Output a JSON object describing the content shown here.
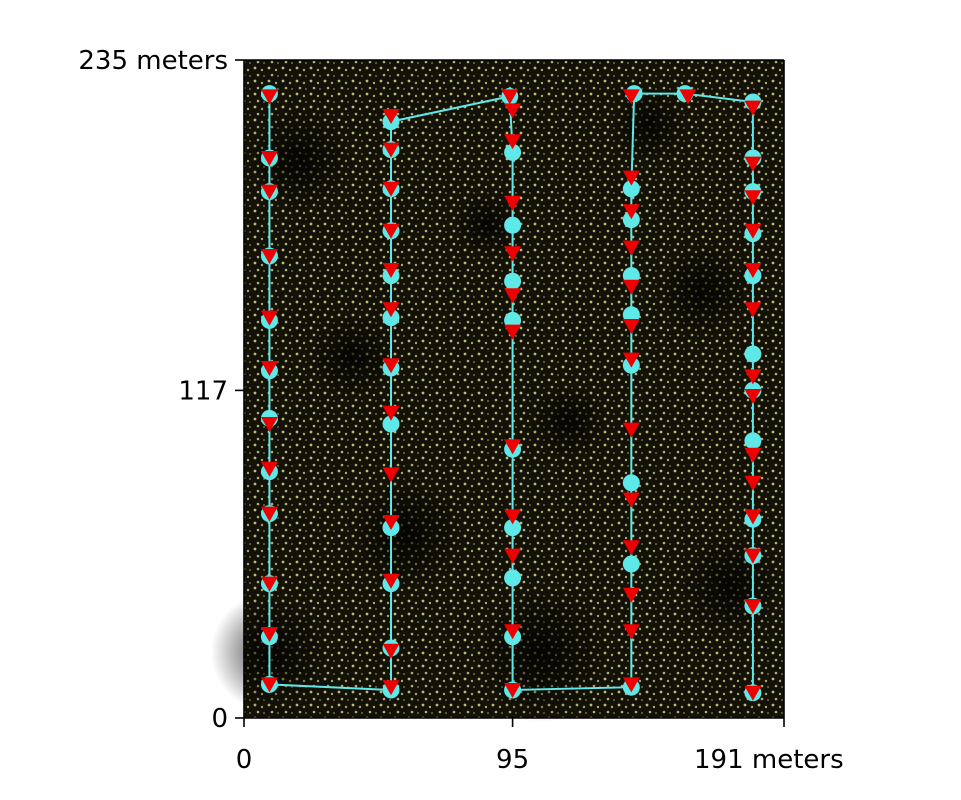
{
  "chart_data": {
    "type": "scatter",
    "xlim": [
      0,
      191
    ],
    "ylim": [
      0,
      235
    ],
    "x_ticks": [
      {
        "value": 0,
        "label": "0"
      },
      {
        "value": 95,
        "label": "95"
      },
      {
        "value": 191,
        "label": "191 meters"
      }
    ],
    "y_ticks": [
      {
        "value": 0,
        "label": "0"
      },
      {
        "value": 117,
        "label": "117"
      },
      {
        "value": 235,
        "label": "235 meters"
      }
    ],
    "background": "aerial crop-field image with dense small pale-yellow plant dots on dark soil",
    "colors": {
      "path_line": "#5ee8e8",
      "cyan_marker": "#5ee8e8",
      "red_marker": "#ee0000",
      "field_dark": "#141208",
      "field_plant": "#d6d88a"
    },
    "series": [
      {
        "marker": "circle",
        "color": "cyan",
        "connected": true,
        "points": [
          [
            9,
            223
          ],
          [
            9,
            200
          ],
          [
            9,
            188
          ],
          [
            9,
            165
          ],
          [
            9,
            142
          ],
          [
            9,
            124
          ],
          [
            9,
            107
          ],
          [
            9,
            88
          ],
          [
            9,
            73
          ],
          [
            9,
            48
          ],
          [
            9,
            29
          ],
          [
            9,
            12
          ],
          [
            52,
            10
          ],
          [
            52,
            25
          ],
          [
            52,
            48
          ],
          [
            52,
            68
          ],
          [
            52,
            105
          ],
          [
            52,
            125
          ],
          [
            52,
            143
          ],
          [
            52,
            158
          ],
          [
            52,
            174
          ],
          [
            52,
            189
          ],
          [
            52,
            203
          ],
          [
            52,
            213
          ],
          [
            94,
            222
          ],
          [
            95,
            202
          ],
          [
            95,
            176
          ],
          [
            95,
            156
          ],
          [
            95,
            142
          ],
          [
            95,
            96
          ],
          [
            95,
            68
          ],
          [
            95,
            50
          ],
          [
            95,
            29
          ],
          [
            95,
            10
          ],
          [
            137,
            11
          ],
          [
            137,
            55
          ],
          [
            137,
            84
          ],
          [
            137,
            126
          ],
          [
            137,
            144
          ],
          [
            137,
            158
          ],
          [
            137,
            178
          ],
          [
            137,
            189
          ],
          [
            138,
            223
          ],
          [
            156,
            223
          ],
          [
            180,
            220
          ],
          [
            180,
            200
          ],
          [
            180,
            188
          ],
          [
            180,
            173
          ],
          [
            180,
            158
          ],
          [
            180,
            130
          ],
          [
            180,
            117
          ],
          [
            180,
            99
          ],
          [
            180,
            71
          ],
          [
            180,
            58
          ],
          [
            180,
            40
          ],
          [
            180,
            9
          ]
        ]
      },
      {
        "marker": "triangle-down",
        "color": "red",
        "connected": false,
        "points": [
          [
            9,
            222
          ],
          [
            9,
            200
          ],
          [
            9,
            188
          ],
          [
            9,
            165
          ],
          [
            9,
            143
          ],
          [
            9,
            125
          ],
          [
            9,
            105
          ],
          [
            9,
            89
          ],
          [
            9,
            73
          ],
          [
            9,
            48
          ],
          [
            9,
            30
          ],
          [
            9,
            12
          ],
          [
            52,
            11
          ],
          [
            52,
            24
          ],
          [
            52,
            49
          ],
          [
            52,
            70
          ],
          [
            52,
            87
          ],
          [
            52,
            109
          ],
          [
            52,
            126
          ],
          [
            52,
            146
          ],
          [
            52,
            160
          ],
          [
            52,
            174
          ],
          [
            52,
            189
          ],
          [
            52,
            203
          ],
          [
            52,
            215
          ],
          [
            94,
            222
          ],
          [
            95,
            217
          ],
          [
            95,
            206
          ],
          [
            95,
            184
          ],
          [
            95,
            166
          ],
          [
            95,
            151
          ],
          [
            95,
            138
          ],
          [
            95,
            97
          ],
          [
            95,
            72
          ],
          [
            95,
            58
          ],
          [
            95,
            31
          ],
          [
            95,
            10
          ],
          [
            137,
            12
          ],
          [
            137,
            31
          ],
          [
            137,
            44
          ],
          [
            137,
            61
          ],
          [
            137,
            78
          ],
          [
            137,
            103
          ],
          [
            137,
            128
          ],
          [
            137,
            140
          ],
          [
            137,
            154
          ],
          [
            137,
            168
          ],
          [
            137,
            181
          ],
          [
            137,
            193
          ],
          [
            137,
            222
          ],
          [
            157,
            222
          ],
          [
            180,
            218
          ],
          [
            180,
            198
          ],
          [
            180,
            186
          ],
          [
            180,
            174
          ],
          [
            180,
            160
          ],
          [
            180,
            146
          ],
          [
            180,
            122
          ],
          [
            180,
            115
          ],
          [
            180,
            94
          ],
          [
            180,
            84
          ],
          [
            180,
            72
          ],
          [
            180,
            58
          ],
          [
            180,
            40
          ],
          [
            180,
            9
          ]
        ]
      }
    ]
  }
}
